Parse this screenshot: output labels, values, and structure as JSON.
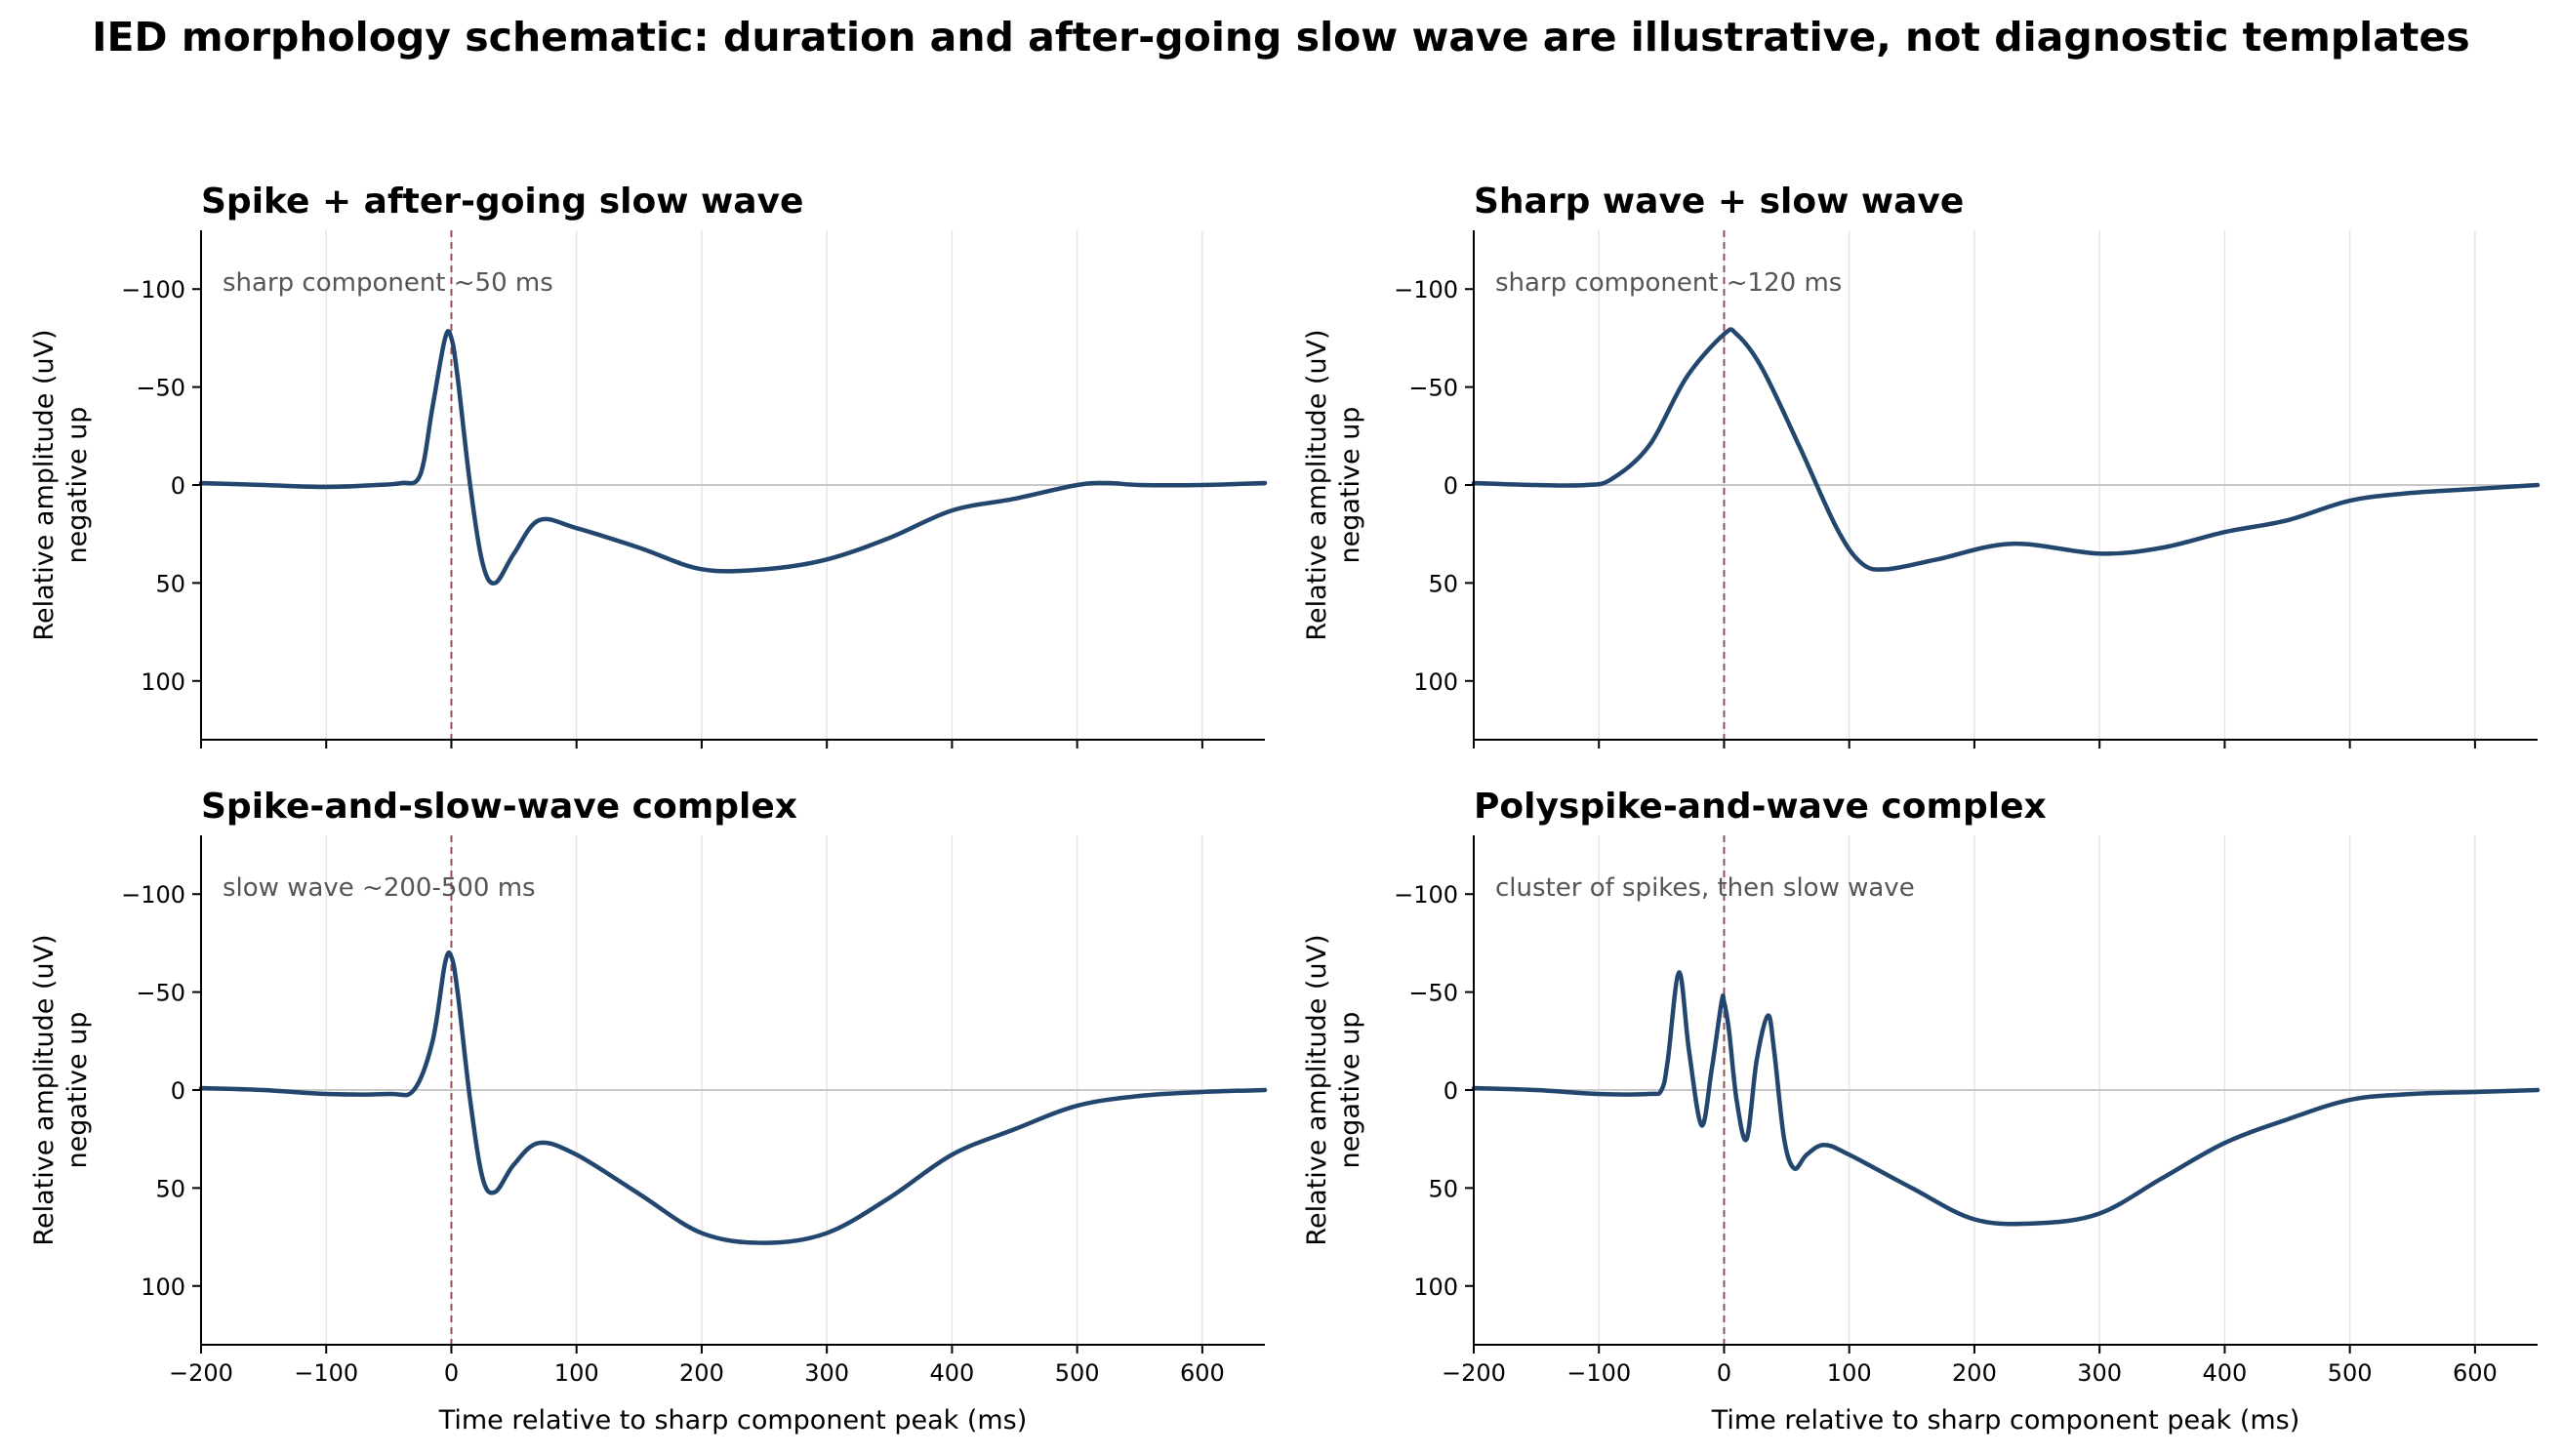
{
  "figure": {
    "title": "IED morphology schematic: duration and after-going slow wave are illustrative, not diagnostic templates"
  },
  "colors": {
    "trace": "#23466f",
    "marker": "#8f5555",
    "baseline": "#c8c8c8",
    "grid": "#e6e6e6"
  },
  "chart_data": [
    {
      "type": "line",
      "title": "Spike + after-going slow wave",
      "annotation": "sharp component ~50 ms",
      "xlabel": "",
      "ylabel": [
        "Relative amplitude (uV)",
        "negative up"
      ],
      "xlim": [
        -200,
        650
      ],
      "ylim": [
        -130,
        130
      ],
      "y_inverted": true,
      "xticks": [
        -200,
        -100,
        0,
        100,
        200,
        300,
        400,
        500,
        600
      ],
      "xticklabels": [
        "",
        "",
        "",
        "",
        "",
        "",
        "",
        "",
        ""
      ],
      "yticks": [
        -100,
        -50,
        0,
        50,
        100
      ],
      "yticklabels": [
        "−100",
        "−50",
        "0",
        "50",
        "100"
      ],
      "vline_x": 0,
      "grid": "x",
      "series": [
        {
          "x": [
            -200,
            -150,
            -100,
            -60,
            -40,
            -25,
            -15,
            -5,
            0,
            5,
            15,
            25,
            35,
            50,
            70,
            100,
            150,
            200,
            250,
            300,
            350,
            400,
            450,
            500,
            525,
            550,
            600,
            650
          ],
          "y": [
            -1,
            0,
            1,
            0,
            -1,
            -5,
            -40,
            -75,
            -75,
            -55,
            0,
            40,
            50,
            35,
            18,
            22,
            32,
            43,
            43,
            38,
            27,
            13,
            7,
            0,
            -1,
            0,
            0,
            -1
          ]
        }
      ]
    },
    {
      "type": "line",
      "title": "Sharp wave + slow wave",
      "annotation": "sharp component ~120 ms",
      "xlabel": "",
      "ylabel": [
        "Relative amplitude (uV)",
        "negative up"
      ],
      "xlim": [
        -200,
        650
      ],
      "ylim": [
        -130,
        130
      ],
      "y_inverted": true,
      "xticks": [
        -200,
        -100,
        0,
        100,
        200,
        300,
        400,
        500,
        600
      ],
      "xticklabels": [
        "",
        "",
        "",
        "",
        "",
        "",
        "",
        "",
        ""
      ],
      "yticks": [
        -100,
        -50,
        0,
        50,
        100
      ],
      "yticklabels": [
        "−100",
        "−50",
        "0",
        "50",
        "100"
      ],
      "vline_x": 0,
      "grid": "x",
      "series": [
        {
          "x": [
            -200,
            -150,
            -110,
            -90,
            -60,
            -30,
            0,
            10,
            30,
            60,
            90,
            110,
            130,
            170,
            230,
            300,
            350,
            400,
            450,
            500,
            550,
            600,
            650
          ],
          "y": [
            -1,
            0,
            0,
            -3,
            -20,
            -55,
            -77,
            -77,
            -60,
            -20,
            22,
            40,
            43,
            38,
            30,
            35,
            32,
            24,
            18,
            8,
            4,
            2,
            0
          ]
        }
      ]
    },
    {
      "type": "line",
      "title": "Spike-and-slow-wave complex",
      "annotation": "slow wave ~200-500 ms",
      "xlabel": "Time relative to sharp component peak (ms)",
      "ylabel": [
        "Relative amplitude (uV)",
        "negative up"
      ],
      "xlim": [
        -200,
        650
      ],
      "ylim": [
        -130,
        130
      ],
      "y_inverted": true,
      "xticks": [
        -200,
        -100,
        0,
        100,
        200,
        300,
        400,
        500,
        600
      ],
      "xticklabels": [
        "−200",
        "−100",
        "0",
        "100",
        "200",
        "300",
        "400",
        "500",
        "600"
      ],
      "yticks": [
        -100,
        -50,
        0,
        50,
        100
      ],
      "yticklabels": [
        "−100",
        "−50",
        "0",
        "50",
        "100"
      ],
      "vline_x": 0,
      "grid": "x",
      "series": [
        {
          "x": [
            -200,
            -150,
            -100,
            -50,
            -30,
            -15,
            -5,
            0,
            5,
            15,
            25,
            35,
            50,
            70,
            100,
            150,
            200,
            250,
            300,
            350,
            400,
            450,
            500,
            550,
            600,
            650
          ],
          "y": [
            -1,
            0,
            2,
            2,
            0,
            -25,
            -65,
            -68,
            -50,
            5,
            45,
            52,
            38,
            27,
            33,
            53,
            73,
            78,
            73,
            55,
            33,
            20,
            8,
            3,
            1,
            0
          ]
        }
      ]
    },
    {
      "type": "line",
      "title": "Polyspike-and-wave complex",
      "annotation": "cluster of spikes, then slow wave",
      "xlabel": "Time relative to sharp component peak (ms)",
      "ylabel": [
        "Relative amplitude (uV)",
        "negative up"
      ],
      "xlim": [
        -200,
        650
      ],
      "ylim": [
        -130,
        130
      ],
      "y_inverted": true,
      "xticks": [
        -200,
        -100,
        0,
        100,
        200,
        300,
        400,
        500,
        600
      ],
      "xticklabels": [
        "−200",
        "−100",
        "0",
        "100",
        "200",
        "300",
        "400",
        "500",
        "600"
      ],
      "yticks": [
        -100,
        -50,
        0,
        50,
        100
      ],
      "yticklabels": [
        "−100",
        "−50",
        "0",
        "50",
        "100"
      ],
      "vline_x": 0,
      "grid": "x",
      "series": [
        {
          "x": [
            -200,
            -150,
            -100,
            -60,
            -50,
            -45,
            -36,
            -28,
            -18,
            -10,
            -2,
            0,
            4,
            10,
            18,
            26,
            35,
            40,
            48,
            56,
            66,
            80,
            100,
            150,
            200,
            250,
            300,
            350,
            400,
            450,
            500,
            550,
            600,
            650
          ],
          "y": [
            -1,
            0,
            2,
            2,
            0,
            -15,
            -60,
            -20,
            18,
            -10,
            -45,
            -45,
            -30,
            5,
            25,
            -15,
            -38,
            -20,
            25,
            40,
            33,
            28,
            33,
            50,
            66,
            68,
            63,
            45,
            27,
            15,
            5,
            2,
            1,
            0
          ]
        }
      ]
    }
  ]
}
